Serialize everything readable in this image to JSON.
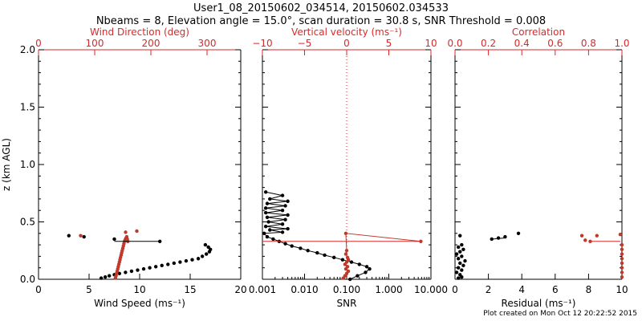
{
  "title_line1": "User1_08_20150602_034514, 20150602.034533",
  "title_line2": "Nbeams = 8, Elevation angle = 15.0°, scan duration = 30.8 s, SNR Threshold = 0.008",
  "footer": "Plot created on Mon Oct 12 20:22:52 2015",
  "colors": {
    "axes": "#000000",
    "red": "#d62a2a",
    "speed": "#000000",
    "direction": "#c0392b"
  },
  "chart_data": [
    {
      "type": "scatter",
      "panel": "wind",
      "ylabel": "z (km AGL)",
      "ylim": [
        0,
        2.0
      ],
      "yticks": [
        "0.0",
        "0.5",
        "1.0",
        "1.5",
        "2.0"
      ],
      "xlabel": "Wind Speed (ms⁻¹)",
      "xlim": [
        0,
        20
      ],
      "xticks": [
        "0",
        "5",
        "10",
        "15",
        "20"
      ],
      "top_xlabel": "Wind Direction (deg)",
      "top_xlim": [
        0,
        360
      ],
      "top_xticks": [
        "0",
        "100",
        "200",
        "300"
      ],
      "series": [
        {
          "color": "black",
          "x": [
            6.2,
            6.6,
            7.0,
            7.5,
            8.0,
            8.6,
            9.2,
            9.8,
            10.4,
            11.0,
            11.6,
            12.2,
            12.8,
            13.4,
            14.0,
            14.6,
            15.2,
            15.8,
            16.2,
            16.6,
            16.9,
            17.0,
            16.8,
            16.5,
            3.0,
            4.5,
            7.5,
            12.0
          ],
          "y": [
            0.01,
            0.02,
            0.03,
            0.04,
            0.05,
            0.06,
            0.07,
            0.08,
            0.09,
            0.1,
            0.11,
            0.12,
            0.13,
            0.14,
            0.15,
            0.16,
            0.17,
            0.18,
            0.2,
            0.22,
            0.24,
            0.26,
            0.28,
            0.3,
            0.38,
            0.37,
            0.35,
            0.33
          ]
        },
        {
          "color": "red",
          "x": [
            137,
            138,
            139,
            140,
            141,
            142,
            143,
            144,
            145,
            146,
            147,
            148,
            149,
            150,
            151,
            152,
            153,
            154,
            155,
            156,
            157,
            158,
            159,
            75,
            155,
            175
          ],
          "y": [
            0.01,
            0.03,
            0.05,
            0.07,
            0.09,
            0.11,
            0.13,
            0.15,
            0.17,
            0.19,
            0.21,
            0.23,
            0.25,
            0.27,
            0.29,
            0.31,
            0.33,
            0.34,
            0.35,
            0.36,
            0.37,
            0.35,
            0.33,
            0.38,
            0.41,
            0.42
          ]
        }
      ]
    },
    {
      "type": "line",
      "panel": "snr",
      "ylim": [
        0,
        2.0
      ],
      "xlabel": "SNR",
      "xscale": "log",
      "xlim": [
        0.001,
        10.0
      ],
      "xticks": [
        "0.001",
        "0.010",
        "0.100",
        "1.000",
        "10.000"
      ],
      "top_xlabel": "Vertical velocity (ms⁻¹)",
      "top_xlim": [
        -10,
        10
      ],
      "top_xticks": [
        "−10",
        "−5",
        "0",
        "5",
        "10"
      ],
      "series": [
        {
          "color": "black",
          "x": [
            0.12,
            0.18,
            0.28,
            0.35,
            0.3,
            0.2,
            0.13,
            0.08,
            0.05,
            0.03,
            0.02,
            0.012,
            0.008,
            0.005,
            0.0035,
            0.0025,
            0.0018,
            0.0013,
            0.0011,
            0.003,
            0.0015,
            0.004,
            0.0012,
            0.003,
            0.0014,
            0.0035,
            0.0013,
            0.004,
            0.0012,
            0.003,
            0.0012,
            0.0035,
            0.0013,
            0.004,
            0.0015,
            0.003,
            0.0012
          ],
          "y": [
            0.0,
            0.03,
            0.06,
            0.09,
            0.11,
            0.13,
            0.15,
            0.17,
            0.19,
            0.21,
            0.23,
            0.25,
            0.27,
            0.29,
            0.31,
            0.33,
            0.35,
            0.37,
            0.4,
            0.41,
            0.43,
            0.44,
            0.46,
            0.48,
            0.5,
            0.52,
            0.54,
            0.56,
            0.58,
            0.6,
            0.62,
            0.64,
            0.66,
            0.68,
            0.7,
            0.73,
            0.76
          ]
        },
        {
          "color": "red",
          "x": [
            -0.4,
            -0.2,
            0.0,
            0.2,
            -0.1,
            0.1,
            -0.2,
            0.0,
            0.2,
            0.1,
            -0.1,
            0.0,
            -0.1,
            8.8
          ],
          "y": [
            0.01,
            0.03,
            0.05,
            0.07,
            0.09,
            0.11,
            0.13,
            0.15,
            0.17,
            0.19,
            0.22,
            0.25,
            0.4,
            0.33
          ]
        }
      ]
    },
    {
      "type": "scatter",
      "panel": "residual",
      "ylim": [
        0,
        2.0
      ],
      "xlabel": "Residual (ms⁻¹)",
      "xlim": [
        0,
        10
      ],
      "xticks": [
        "0",
        "2",
        "4",
        "6",
        "8",
        "10"
      ],
      "top_xlabel": "Correlation",
      "top_xlim": [
        0.0,
        1.0
      ],
      "top_xticks": [
        "0.0",
        "0.2",
        "0.4",
        "0.6",
        "0.8",
        "1.0"
      ],
      "series": [
        {
          "color": "black",
          "x": [
            0.2,
            0.4,
            0.3,
            0.1,
            0.4,
            0.2,
            0.5,
            0.3,
            0.6,
            0.2,
            0.4,
            0.1,
            0.3,
            0.5,
            0.2,
            0.4,
            0.3,
            2.2,
            2.6,
            3.0,
            3.8
          ],
          "y": [
            0.01,
            0.02,
            0.04,
            0.06,
            0.08,
            0.1,
            0.12,
            0.14,
            0.16,
            0.18,
            0.2,
            0.22,
            0.24,
            0.26,
            0.28,
            0.3,
            0.38,
            0.35,
            0.36,
            0.37,
            0.4
          ]
        },
        {
          "color": "red",
          "x": [
            1.0,
            1.0,
            1.0,
            1.0,
            1.0,
            1.0,
            1.0,
            1.0,
            0.78,
            0.81,
            0.85,
            0.99,
            0.76
          ],
          "y": [
            0.02,
            0.06,
            0.1,
            0.14,
            0.18,
            0.22,
            0.26,
            0.3,
            0.34,
            0.33,
            0.38,
            0.39,
            0.38
          ]
        }
      ]
    }
  ]
}
